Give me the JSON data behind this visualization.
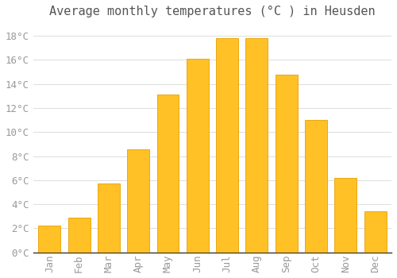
{
  "title": "Average monthly temperatures (°C ) in Heusden",
  "months": [
    "Jan",
    "Feb",
    "Mar",
    "Apr",
    "May",
    "Jun",
    "Jul",
    "Aug",
    "Sep",
    "Oct",
    "Nov",
    "Dec"
  ],
  "temperatures": [
    2.2,
    2.9,
    5.7,
    8.6,
    13.1,
    16.1,
    17.8,
    17.8,
    14.8,
    11.0,
    6.2,
    3.4
  ],
  "bar_color": "#FFC125",
  "bar_edge_color": "#E8A000",
  "background_color": "#FFFFFF",
  "plot_bg_color": "#FFFFFF",
  "grid_color": "#DDDDDD",
  "ytick_color": "#999999",
  "xtick_color": "#999999",
  "title_color": "#555555",
  "spine_color": "#333333",
  "ylim": [
    0,
    19
  ],
  "yticks": [
    0,
    2,
    4,
    6,
    8,
    10,
    12,
    14,
    16,
    18
  ],
  "ylabel_suffix": "°C",
  "title_fontsize": 11,
  "tick_fontsize": 9,
  "font_family": "monospace"
}
